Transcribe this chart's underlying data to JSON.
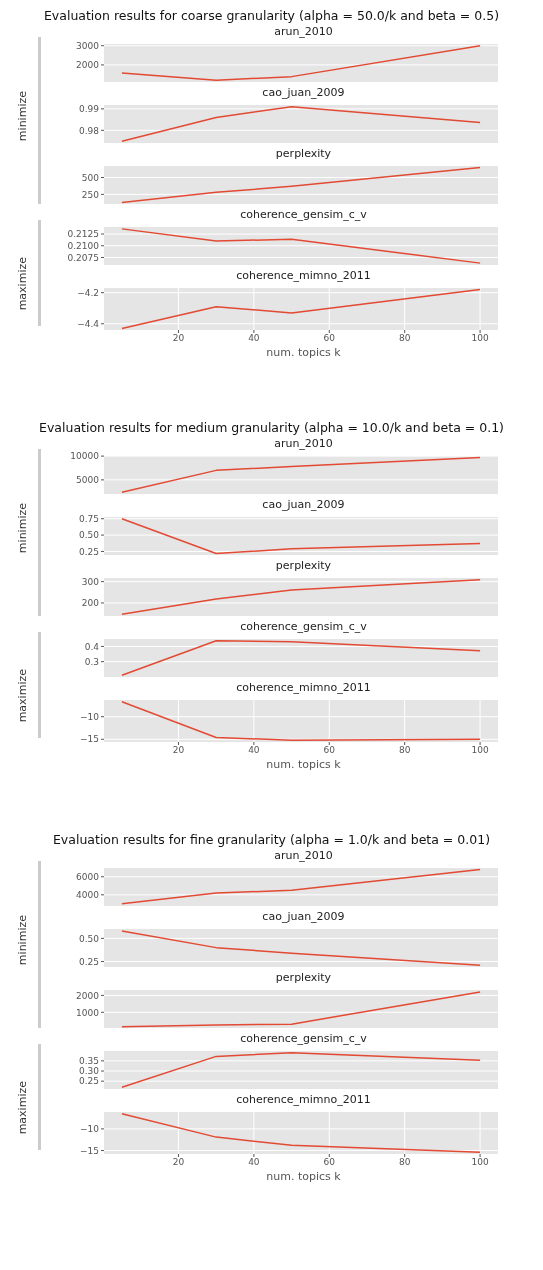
{
  "chart_data": [
    {
      "type": "line",
      "title": "Evaluation results for coarse granularity (alpha = 50.0/k and beta = 0.5)",
      "subtitle": "arun_2010",
      "ylabel": "minimize",
      "x": [
        5,
        30,
        50,
        100
      ],
      "values": [
        1580,
        1200,
        1390,
        3000
      ],
      "color": "#e24a33",
      "xlim": [
        0.25,
        104.75
      ],
      "ylim": [
        1110,
        3090
      ],
      "xticks": [
        20,
        40,
        60,
        80,
        100
      ],
      "yticks": [
        2000,
        3000
      ],
      "grid": true,
      "tick_labels": "y"
    },
    {
      "type": "line",
      "subtitle": "cao_juan_2009",
      "x": [
        5,
        30,
        50,
        100
      ],
      "values": [
        0.9749,
        0.986,
        0.991,
        0.9837
      ],
      "color": "#e24a33",
      "xlim": [
        0.25,
        104.75
      ],
      "ylim": [
        0.9741,
        0.9918
      ],
      "xticks": [
        20,
        40,
        60,
        80,
        100
      ],
      "yticks": [
        0.98,
        0.99
      ],
      "grid": true,
      "tick_labels": "y"
    },
    {
      "type": "line",
      "subtitle": "perplexity",
      "x": [
        5,
        30,
        50,
        100
      ],
      "values": [
        130,
        280,
        370,
        650
      ],
      "color": "#e24a33",
      "xlim": [
        0.25,
        104.75
      ],
      "ylim": [
        107,
        671
      ],
      "xticks": [
        20,
        40,
        60,
        80,
        100
      ],
      "yticks": [
        250,
        500
      ],
      "grid": true,
      "tick_labels": "y"
    },
    {
      "type": "line",
      "subtitle": "coherence_gensim_c_v",
      "ylabel": "maximize",
      "x": [
        5,
        30,
        50,
        100
      ],
      "values": [
        0.2136,
        0.211,
        0.2114,
        0.2063
      ],
      "color": "#e24a33",
      "xlim": [
        0.25,
        104.75
      ],
      "ylim": [
        0.2059,
        0.214
      ],
      "xticks": [
        20,
        40,
        60,
        80,
        100
      ],
      "yticks": [
        {
          "value": 0.2075,
          "label": "0.2075"
        },
        {
          "value": 0.21,
          "label": "0.2100"
        },
        {
          "value": 0.2125,
          "label": "0.2125"
        }
      ],
      "grid": true,
      "tick_labels": "y"
    },
    {
      "type": "line",
      "subtitle": "coherence_mimno_2011",
      "xlabel": "num. topics k",
      "x": [
        5,
        30,
        50,
        100
      ],
      "values": [
        -4.43,
        -4.29,
        -4.33,
        -4.18
      ],
      "color": "#e24a33",
      "xlim": [
        0.25,
        104.75
      ],
      "ylim": [
        -4.44,
        -4.17
      ],
      "xticks": [
        20,
        40,
        60,
        80,
        100
      ],
      "yticks": [
        {
          "value": -4.4,
          "label": "−4.4"
        },
        {
          "value": -4.2,
          "label": "−4.2"
        }
      ],
      "grid": true
    },
    {
      "type": "line",
      "title": "Evaluation results for medium granularity (alpha = 10.0/k and beta = 0.1)",
      "subtitle": "arun_2010",
      "ylabel": "minimize",
      "x": [
        5,
        30,
        50,
        100
      ],
      "values": [
        2400,
        7000,
        7800,
        9700
      ],
      "color": "#e24a33",
      "xlim": [
        0.25,
        104.75
      ],
      "ylim": [
        2030,
        10020
      ],
      "xticks": [
        20,
        40,
        60,
        80,
        100
      ],
      "yticks": [
        5000,
        10000
      ],
      "grid": true,
      "tick_labels": "y"
    },
    {
      "type": "line",
      "subtitle": "cao_juan_2009",
      "x": [
        5,
        30,
        50,
        100
      ],
      "values": [
        0.75,
        0.22,
        0.29,
        0.37
      ],
      "color": "#e24a33",
      "xlim": [
        0.25,
        104.75
      ],
      "ylim": [
        0.196,
        0.776
      ],
      "xticks": [
        20,
        40,
        60,
        80,
        100
      ],
      "yticks": [
        0.25,
        {
          "value": 0.5,
          "label": "0.50"
        },
        0.75
      ],
      "grid": true,
      "tick_labels": "y"
    },
    {
      "type": "line",
      "subtitle": "perplexity",
      "x": [
        5,
        30,
        50,
        100
      ],
      "values": [
        147,
        219,
        261,
        309
      ],
      "color": "#e24a33",
      "xlim": [
        0.25,
        104.75
      ],
      "ylim": [
        139,
        317
      ],
      "xticks": [
        20,
        40,
        60,
        80,
        100
      ],
      "yticks": [
        200,
        300
      ],
      "grid": true,
      "tick_labels": "y"
    },
    {
      "type": "line",
      "subtitle": "coherence_gensim_c_v",
      "ylabel": "maximize",
      "x": [
        5,
        30,
        50,
        100
      ],
      "values": [
        0.21,
        0.438,
        0.431,
        0.371
      ],
      "color": "#e24a33",
      "xlim": [
        0.25,
        104.75
      ],
      "ylim": [
        0.199,
        0.449
      ],
      "xticks": [
        20,
        40,
        60,
        80,
        100
      ],
      "yticks": [
        0.3,
        0.4
      ],
      "grid": true,
      "tick_labels": "y"
    },
    {
      "type": "line",
      "subtitle": "coherence_mimno_2011",
      "xlabel": "num. topics k",
      "x": [
        5,
        30,
        50,
        100
      ],
      "values": [
        -6.7,
        -14.6,
        -15.2,
        -15.0
      ],
      "color": "#e24a33",
      "xlim": [
        0.25,
        104.75
      ],
      "ylim": [
        -15.6,
        -6.3
      ],
      "xticks": [
        20,
        40,
        60,
        80,
        100
      ],
      "yticks": [
        {
          "value": -15,
          "label": "−15"
        },
        {
          "value": -10,
          "label": "−10"
        }
      ],
      "grid": true
    },
    {
      "type": "line",
      "title": "Evaluation results for fine granularity (alpha = 1.0/k and beta = 0.01)",
      "subtitle": "arun_2010",
      "ylabel": "minimize",
      "x": [
        5,
        30,
        50,
        100
      ],
      "values": [
        3000,
        4200,
        4500,
        6800
      ],
      "color": "#e24a33",
      "xlim": [
        0.25,
        104.75
      ],
      "ylim": [
        2760,
        6970
      ],
      "xticks": [
        20,
        40,
        60,
        80,
        100
      ],
      "yticks": [
        4000,
        6000
      ],
      "grid": true,
      "tick_labels": "y"
    },
    {
      "type": "line",
      "subtitle": "cao_juan_2009",
      "x": [
        5,
        30,
        50,
        100
      ],
      "values": [
        0.58,
        0.4,
        0.34,
        0.21
      ],
      "color": "#e24a33",
      "xlim": [
        0.25,
        104.75
      ],
      "ylim": [
        0.191,
        0.601
      ],
      "xticks": [
        20,
        40,
        60,
        80,
        100
      ],
      "yticks": [
        0.25,
        {
          "value": 0.5,
          "label": "0.50"
        }
      ],
      "grid": true,
      "tick_labels": "y"
    },
    {
      "type": "line",
      "subtitle": "perplexity",
      "x": [
        5,
        30,
        50,
        100
      ],
      "values": [
        150,
        250,
        300,
        2200
      ],
      "color": "#e24a33",
      "xlim": [
        0.25,
        104.75
      ],
      "ylim": [
        72,
        2319
      ],
      "xticks": [
        20,
        40,
        60,
        80,
        100
      ],
      "yticks": [
        1000,
        2000
      ],
      "grid": true,
      "tick_labels": "y"
    },
    {
      "type": "line",
      "subtitle": "coherence_gensim_c_v",
      "ylabel": "maximize",
      "x": [
        5,
        30,
        50,
        100
      ],
      "values": [
        0.22,
        0.372,
        0.39,
        0.353
      ],
      "color": "#e24a33",
      "xlim": [
        0.25,
        104.75
      ],
      "ylim": [
        0.2115,
        0.3985
      ],
      "xticks": [
        20,
        40,
        60,
        80,
        100
      ],
      "yticks": [
        0.25,
        {
          "value": 0.3,
          "label": "0.30"
        },
        0.35
      ],
      "grid": true,
      "tick_labels": "y"
    },
    {
      "type": "line",
      "subtitle": "coherence_mimno_2011",
      "xlabel": "num. topics k",
      "x": [
        5,
        30,
        50,
        100
      ],
      "values": [
        -6.5,
        -11.9,
        -13.8,
        -15.4
      ],
      "color": "#e24a33",
      "xlim": [
        0.25,
        104.75
      ],
      "ylim": [
        -15.8,
        -6.1
      ],
      "xticks": [
        20,
        40,
        60,
        80,
        100
      ],
      "yticks": [
        {
          "value": -15,
          "label": "−15"
        },
        {
          "value": -10,
          "label": "−10"
        }
      ],
      "grid": true
    }
  ]
}
